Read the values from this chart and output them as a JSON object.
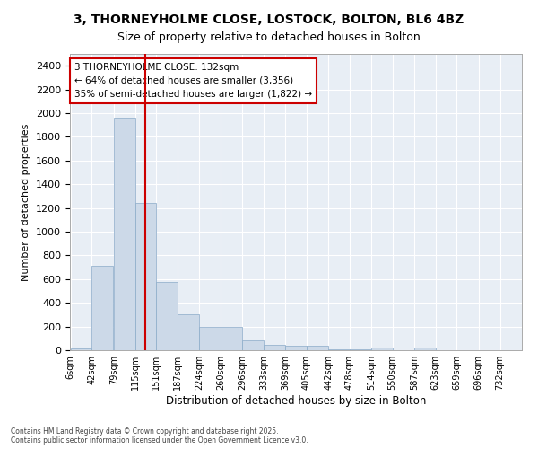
{
  "title_line1": "3, THORNEYHOLME CLOSE, LOSTOCK, BOLTON, BL6 4BZ",
  "title_line2": "Size of property relative to detached houses in Bolton",
  "xlabel": "Distribution of detached houses by size in Bolton",
  "ylabel": "Number of detached properties",
  "bar_color": "#ccd9e8",
  "bar_edge_color": "#8aaac8",
  "background_color": "#e8eef5",
  "grid_color": "#ffffff",
  "vline_x": 132,
  "vline_color": "#cc0000",
  "annotation_text": "3 THORNEYHOLME CLOSE: 132sqm\n← 64% of detached houses are smaller (3,356)\n35% of semi-detached houses are larger (1,822) →",
  "annotation_box_color": "#ffffff",
  "annotation_box_edge": "#cc0000",
  "categories": [
    "6sqm",
    "42sqm",
    "79sqm",
    "115sqm",
    "151sqm",
    "187sqm",
    "224sqm",
    "260sqm",
    "296sqm",
    "333sqm",
    "369sqm",
    "405sqm",
    "442sqm",
    "478sqm",
    "514sqm",
    "550sqm",
    "587sqm",
    "623sqm",
    "659sqm",
    "696sqm",
    "732sqm"
  ],
  "bar_values": [
    15,
    710,
    1960,
    1240,
    575,
    305,
    200,
    200,
    85,
    47,
    35,
    35,
    5,
    5,
    20,
    0,
    20,
    0,
    0,
    0,
    0
  ],
  "ylim": [
    0,
    2500
  ],
  "yticks": [
    0,
    200,
    400,
    600,
    800,
    1000,
    1200,
    1400,
    1600,
    1800,
    2000,
    2200,
    2400
  ],
  "footer_text": "Contains HM Land Registry data © Crown copyright and database right 2025.\nContains public sector information licensed under the Open Government Licence v3.0.",
  "bin_width": 36,
  "figsize": [
    6.0,
    5.0
  ],
  "dpi": 100
}
